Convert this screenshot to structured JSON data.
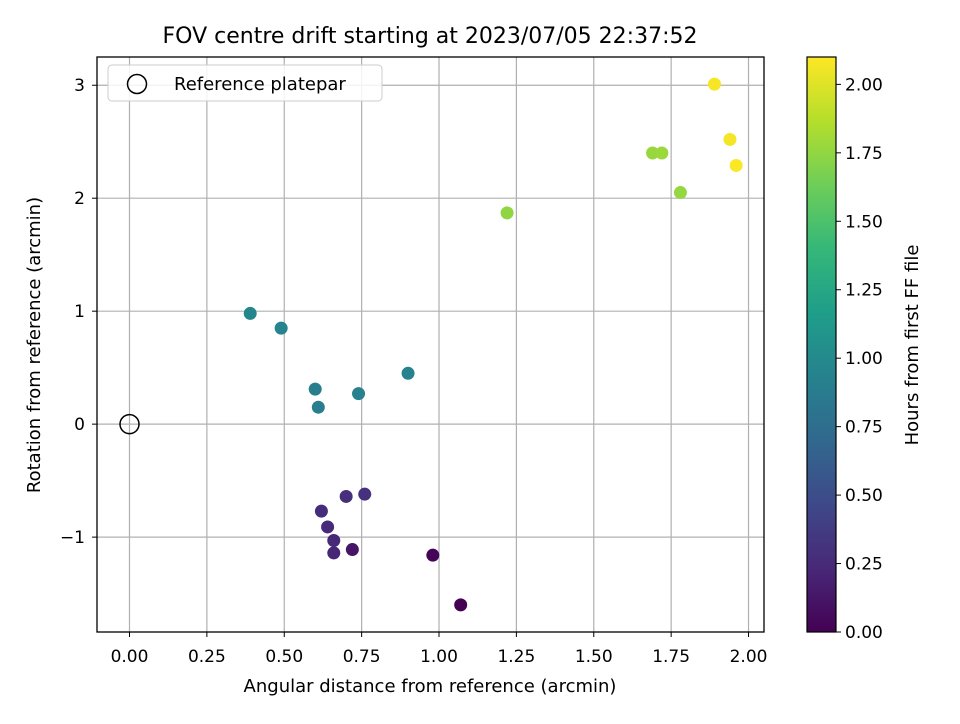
{
  "chart_data": {
    "type": "scatter",
    "title": "FOV centre drift starting at 2023/07/05 22:37:52",
    "xlabel": "Angular distance from reference (arcmin)",
    "ylabel": "Rotation from reference (arcmin)",
    "xlim": [
      -0.105,
      2.05
    ],
    "ylim": [
      -1.84,
      3.25
    ],
    "xticks": [
      0.0,
      0.25,
      0.5,
      0.75,
      1.0,
      1.25,
      1.5,
      1.75,
      2.0
    ],
    "xtick_labels": [
      "0.00",
      "0.25",
      "0.50",
      "0.75",
      "1.00",
      "1.25",
      "1.50",
      "1.75",
      "2.00"
    ],
    "yticks": [
      -1,
      0,
      1,
      2,
      3
    ],
    "ytick_labels": [
      "−1",
      "0",
      "1",
      "2",
      "3"
    ],
    "grid": true,
    "legend": {
      "position": "top-left",
      "entries": [
        "Reference platepar"
      ]
    },
    "reference_point": {
      "x": 0.0,
      "y": 0.0
    },
    "colorbar": {
      "label": "Hours from first FF file",
      "colormap": "viridis",
      "range": [
        0.0,
        2.1
      ],
      "ticks": [
        0.0,
        0.25,
        0.5,
        0.75,
        1.0,
        1.25,
        1.5,
        1.75,
        2.0
      ],
      "tick_labels": [
        "0.00",
        "0.25",
        "0.50",
        "0.75",
        "1.00",
        "1.25",
        "1.50",
        "1.75",
        "2.00"
      ]
    },
    "points": [
      {
        "x": 1.07,
        "y": -1.6,
        "hours": 0.0
      },
      {
        "x": 0.98,
        "y": -1.16,
        "hours": 0.02
      },
      {
        "x": 0.72,
        "y": -1.11,
        "hours": 0.12
      },
      {
        "x": 0.66,
        "y": -1.14,
        "hours": 0.22
      },
      {
        "x": 0.66,
        "y": -1.03,
        "hours": 0.24
      },
      {
        "x": 0.64,
        "y": -0.91,
        "hours": 0.25
      },
      {
        "x": 0.62,
        "y": -0.77,
        "hours": 0.27
      },
      {
        "x": 0.7,
        "y": -0.64,
        "hours": 0.28
      },
      {
        "x": 0.76,
        "y": -0.62,
        "hours": 0.3
      },
      {
        "x": 0.61,
        "y": 0.15,
        "hours": 0.9
      },
      {
        "x": 0.6,
        "y": 0.31,
        "hours": 0.91
      },
      {
        "x": 0.74,
        "y": 0.27,
        "hours": 0.92
      },
      {
        "x": 0.9,
        "y": 0.45,
        "hours": 0.93
      },
      {
        "x": 0.49,
        "y": 0.85,
        "hours": 0.95
      },
      {
        "x": 0.39,
        "y": 0.98,
        "hours": 0.96
      },
      {
        "x": 1.22,
        "y": 1.87,
        "hours": 1.75
      },
      {
        "x": 1.69,
        "y": 2.4,
        "hours": 1.77
      },
      {
        "x": 1.72,
        "y": 2.4,
        "hours": 1.78
      },
      {
        "x": 1.78,
        "y": 2.05,
        "hours": 1.76
      },
      {
        "x": 1.89,
        "y": 3.01,
        "hours": 2.08
      },
      {
        "x": 1.94,
        "y": 2.52,
        "hours": 2.07
      },
      {
        "x": 1.96,
        "y": 2.29,
        "hours": 2.09
      }
    ]
  }
}
